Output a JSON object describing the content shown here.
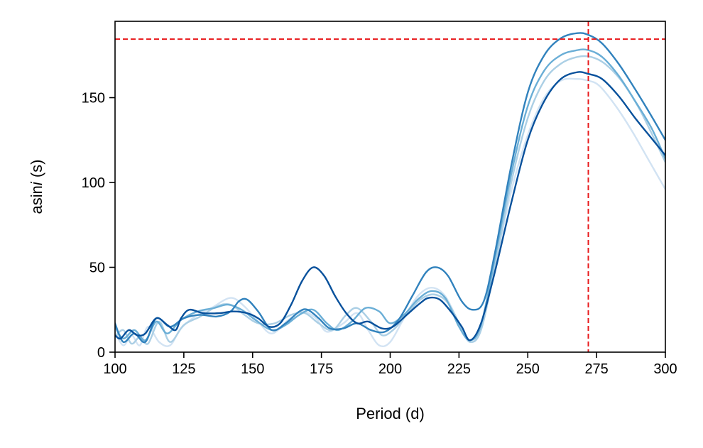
{
  "chart_data": {
    "type": "line",
    "title": "",
    "xlabel": "Period (d)",
    "ylabel_prefix": "asin",
    "ylabel_italic": "i",
    "ylabel_suffix": " (s)",
    "xlim": [
      100,
      300
    ],
    "ylim": [
      0,
      195
    ],
    "xticks": [
      100,
      125,
      150,
      175,
      200,
      225,
      250,
      275,
      300
    ],
    "yticks": [
      0,
      50,
      100,
      150
    ],
    "grid": false,
    "legend": "none",
    "reference_lines": {
      "color": "#e8191b",
      "x": 272,
      "y": 184.5
    },
    "series": [
      {
        "color": "#d2e3f3",
        "points": [
          [
            100,
            12
          ],
          [
            103,
            4
          ],
          [
            106,
            10
          ],
          [
            109,
            4
          ],
          [
            112,
            15
          ],
          [
            116,
            6
          ],
          [
            120,
            4
          ],
          [
            124,
            14
          ],
          [
            130,
            22
          ],
          [
            135,
            26
          ],
          [
            142,
            32
          ],
          [
            147,
            27
          ],
          [
            152,
            18
          ],
          [
            157,
            11
          ],
          [
            163,
            19
          ],
          [
            168,
            24
          ],
          [
            173,
            20
          ],
          [
            177,
            12
          ],
          [
            183,
            17
          ],
          [
            188,
            23
          ],
          [
            192,
            13
          ],
          [
            196,
            4
          ],
          [
            200,
            6
          ],
          [
            205,
            20
          ],
          [
            210,
            33
          ],
          [
            215,
            38
          ],
          [
            220,
            33
          ],
          [
            225,
            17
          ],
          [
            229,
            6
          ],
          [
            233,
            14
          ],
          [
            238,
            50
          ],
          [
            244,
            95
          ],
          [
            250,
            128
          ],
          [
            256,
            150
          ],
          [
            262,
            160
          ],
          [
            268,
            161
          ],
          [
            272,
            160
          ],
          [
            276,
            157
          ],
          [
            282,
            145
          ],
          [
            288,
            130
          ],
          [
            294,
            113
          ],
          [
            300,
            96
          ]
        ]
      },
      {
        "color": "#abcfe5",
        "points": [
          [
            100,
            9
          ],
          [
            103,
            13
          ],
          [
            106,
            5
          ],
          [
            109,
            9
          ],
          [
            112,
            5
          ],
          [
            116,
            18
          ],
          [
            120,
            6
          ],
          [
            125,
            16
          ],
          [
            131,
            21
          ],
          [
            137,
            27
          ],
          [
            142,
            28
          ],
          [
            147,
            22
          ],
          [
            152,
            17
          ],
          [
            158,
            17
          ],
          [
            164,
            22
          ],
          [
            169,
            23
          ],
          [
            174,
            17
          ],
          [
            179,
            13
          ],
          [
            184,
            22
          ],
          [
            188,
            26
          ],
          [
            193,
            18
          ],
          [
            197,
            10
          ],
          [
            201,
            13
          ],
          [
            206,
            22
          ],
          [
            211,
            31
          ],
          [
            216,
            34
          ],
          [
            221,
            29
          ],
          [
            226,
            14
          ],
          [
            229,
            6
          ],
          [
            233,
            13
          ],
          [
            238,
            50
          ],
          [
            244,
            100
          ],
          [
            250,
            138
          ],
          [
            256,
            160
          ],
          [
            262,
            170
          ],
          [
            268,
            174
          ],
          [
            273,
            174
          ],
          [
            278,
            170
          ],
          [
            284,
            160
          ],
          [
            290,
            145
          ],
          [
            295,
            129
          ],
          [
            300,
            112
          ]
        ]
      },
      {
        "color": "#6aaed6",
        "points": [
          [
            100,
            15
          ],
          [
            103,
            8
          ],
          [
            107,
            13
          ],
          [
            111,
            7
          ],
          [
            115,
            18
          ],
          [
            119,
            11
          ],
          [
            124,
            19
          ],
          [
            130,
            24
          ],
          [
            136,
            26
          ],
          [
            141,
            28
          ],
          [
            146,
            25
          ],
          [
            151,
            19
          ],
          [
            157,
            13
          ],
          [
            162,
            16
          ],
          [
            167,
            22
          ],
          [
            172,
            25
          ],
          [
            177,
            17
          ],
          [
            181,
            13
          ],
          [
            186,
            18
          ],
          [
            191,
            26
          ],
          [
            196,
            24
          ],
          [
            200,
            17
          ],
          [
            205,
            22
          ],
          [
            210,
            31
          ],
          [
            215,
            36
          ],
          [
            220,
            32
          ],
          [
            225,
            15
          ],
          [
            229,
            7
          ],
          [
            233,
            16
          ],
          [
            238,
            55
          ],
          [
            244,
            105
          ],
          [
            250,
            145
          ],
          [
            256,
            166
          ],
          [
            262,
            175
          ],
          [
            268,
            178
          ],
          [
            272,
            178
          ],
          [
            277,
            174
          ],
          [
            283,
            163
          ],
          [
            289,
            148
          ],
          [
            295,
            132
          ],
          [
            300,
            114
          ]
        ]
      },
      {
        "color": "#3182bd",
        "points": [
          [
            100,
            17
          ],
          [
            103,
            6
          ],
          [
            107,
            11
          ],
          [
            111,
            6
          ],
          [
            115,
            20
          ],
          [
            120,
            15
          ],
          [
            125,
            20
          ],
          [
            131,
            22
          ],
          [
            137,
            21
          ],
          [
            142,
            24
          ],
          [
            145,
            30
          ],
          [
            148,
            31
          ],
          [
            152,
            24
          ],
          [
            157,
            13
          ],
          [
            162,
            17
          ],
          [
            167,
            24
          ],
          [
            170,
            25
          ],
          [
            174,
            20
          ],
          [
            178,
            14
          ],
          [
            183,
            14
          ],
          [
            188,
            17
          ],
          [
            193,
            13
          ],
          [
            198,
            12
          ],
          [
            203,
            19
          ],
          [
            208,
            33
          ],
          [
            213,
            47
          ],
          [
            217,
            50
          ],
          [
            221,
            45
          ],
          [
            226,
            30
          ],
          [
            230,
            25
          ],
          [
            234,
            30
          ],
          [
            238,
            58
          ],
          [
            244,
            110
          ],
          [
            250,
            153
          ],
          [
            256,
            175
          ],
          [
            262,
            185
          ],
          [
            268,
            188
          ],
          [
            272,
            187
          ],
          [
            277,
            182
          ],
          [
            283,
            170
          ],
          [
            289,
            155
          ],
          [
            295,
            139
          ],
          [
            300,
            125
          ]
        ]
      },
      {
        "color": "#08519c",
        "points": [
          [
            100,
            10
          ],
          [
            102,
            8
          ],
          [
            105,
            13
          ],
          [
            108,
            10
          ],
          [
            111,
            11
          ],
          [
            115,
            20
          ],
          [
            119,
            16
          ],
          [
            122,
            13
          ],
          [
            124,
            20
          ],
          [
            127,
            25
          ],
          [
            132,
            23
          ],
          [
            138,
            23
          ],
          [
            143,
            24
          ],
          [
            148,
            23
          ],
          [
            152,
            20
          ],
          [
            156,
            15
          ],
          [
            160,
            17
          ],
          [
            164,
            28
          ],
          [
            168,
            42
          ],
          [
            172,
            50
          ],
          [
            176,
            45
          ],
          [
            180,
            33
          ],
          [
            184,
            23
          ],
          [
            188,
            17
          ],
          [
            192,
            18
          ],
          [
            197,
            14
          ],
          [
            201,
            15
          ],
          [
            206,
            22
          ],
          [
            211,
            29
          ],
          [
            214,
            32
          ],
          [
            218,
            31
          ],
          [
            222,
            24
          ],
          [
            226,
            15
          ],
          [
            229,
            7
          ],
          [
            233,
            17
          ],
          [
            238,
            47
          ],
          [
            244,
            88
          ],
          [
            250,
            125
          ],
          [
            256,
            148
          ],
          [
            262,
            161
          ],
          [
            268,
            165
          ],
          [
            272,
            164
          ],
          [
            277,
            161
          ],
          [
            283,
            151
          ],
          [
            289,
            138
          ],
          [
            295,
            126
          ],
          [
            300,
            116
          ]
        ]
      }
    ]
  }
}
